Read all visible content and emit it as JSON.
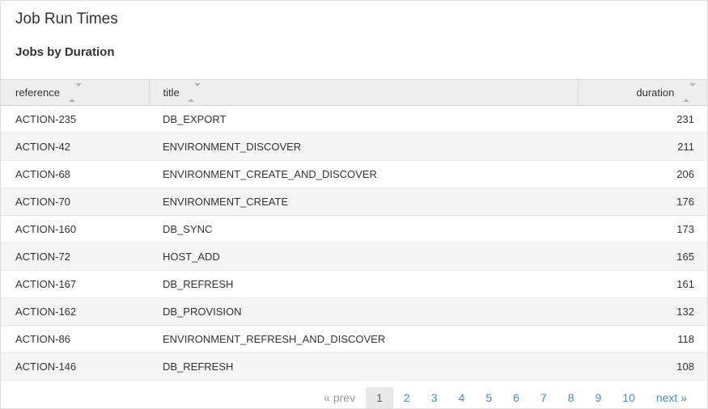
{
  "page": {
    "title": "Job Run Times",
    "subtitle": "Jobs by Duration"
  },
  "table": {
    "columns": {
      "reference": {
        "label": "reference"
      },
      "title": {
        "label": "title"
      },
      "duration": {
        "label": "duration"
      }
    },
    "rows": [
      {
        "reference": "ACTION-235",
        "title": "DB_EXPORT",
        "duration": "231"
      },
      {
        "reference": "ACTION-42",
        "title": "ENVIRONMENT_DISCOVER",
        "duration": "211"
      },
      {
        "reference": "ACTION-68",
        "title": "ENVIRONMENT_CREATE_AND_DISCOVER",
        "duration": "206"
      },
      {
        "reference": "ACTION-70",
        "title": "ENVIRONMENT_CREATE",
        "duration": "176"
      },
      {
        "reference": "ACTION-160",
        "title": "DB_SYNC",
        "duration": "173"
      },
      {
        "reference": "ACTION-72",
        "title": "HOST_ADD",
        "duration": "165"
      },
      {
        "reference": "ACTION-167",
        "title": "DB_REFRESH",
        "duration": "161"
      },
      {
        "reference": "ACTION-162",
        "title": "DB_PROVISION",
        "duration": "132"
      },
      {
        "reference": "ACTION-86",
        "title": "ENVIRONMENT_REFRESH_AND_DISCOVER",
        "duration": "118"
      },
      {
        "reference": "ACTION-146",
        "title": "DB_REFRESH",
        "duration": "108"
      }
    ]
  },
  "pagination": {
    "prev": "« prev",
    "current": "1",
    "pages": [
      "2",
      "3",
      "4",
      "5",
      "6",
      "7",
      "8",
      "9",
      "10"
    ],
    "next": "next »"
  },
  "icons": {
    "sort": "sort-vertical-carets"
  },
  "colors": {
    "link_blue": "#428bca",
    "header_bg": "#eeeeee",
    "stripe_bg": "#f5f5f5",
    "border": "#dddddd",
    "text": "#333333",
    "muted_text": "#999999",
    "current_page_bg": "#e8e8e8"
  }
}
